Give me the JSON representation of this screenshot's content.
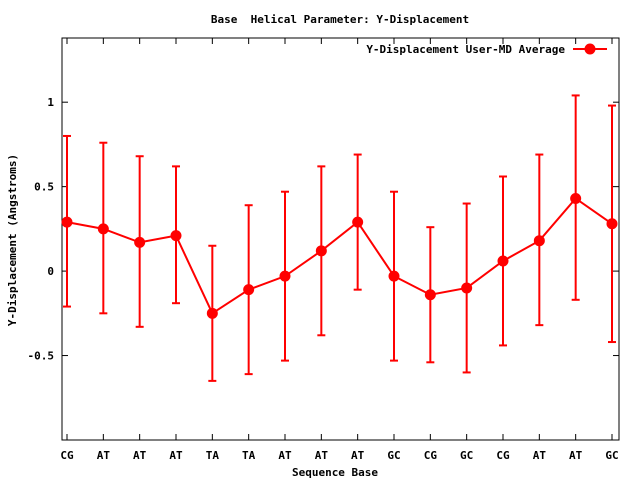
{
  "chart_data": {
    "type": "line",
    "title": "Base  Helical Parameter: Y-Displacement",
    "xlabel": "Sequence Base",
    "ylabel": "Y-Displacement (Angstroms)",
    "categories": [
      "CG",
      "AT",
      "AT",
      "AT",
      "TA",
      "TA",
      "AT",
      "AT",
      "AT",
      "GC",
      "CG",
      "GC",
      "CG",
      "AT",
      "AT",
      "GC"
    ],
    "ylim": [
      -1,
      1.38
    ],
    "yticks": [
      -0.5,
      0,
      0.5,
      1
    ],
    "ytick_labels": [
      "-0.5",
      "0",
      "0.5",
      "1"
    ],
    "legend_position": "top-right",
    "series": [
      {
        "name": "Y-Displacement User-MD Average",
        "color": "#ff0000",
        "values": [
          0.29,
          0.25,
          0.17,
          0.21,
          -0.25,
          -0.11,
          -0.03,
          0.12,
          0.29,
          -0.03,
          -0.14,
          -0.1,
          0.06,
          0.18,
          0.43,
          0.28
        ],
        "error_low": [
          -0.21,
          -0.25,
          -0.33,
          -0.19,
          -0.65,
          -0.61,
          -0.53,
          -0.38,
          -0.11,
          -0.53,
          -0.54,
          -0.6,
          -0.44,
          -0.32,
          -0.17,
          -0.42
        ],
        "error_high": [
          0.8,
          0.76,
          0.68,
          0.62,
          0.15,
          0.39,
          0.47,
          0.62,
          0.69,
          0.47,
          0.26,
          0.4,
          0.56,
          0.69,
          1.04,
          0.98
        ]
      }
    ]
  }
}
